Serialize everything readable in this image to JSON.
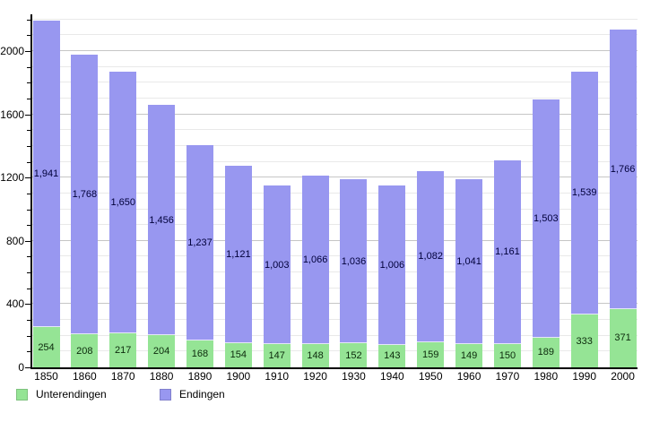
{
  "chart_data": {
    "type": "bar",
    "stacked": true,
    "title": "",
    "xlabel": "",
    "ylabel": "",
    "categories": [
      "1850",
      "1860",
      "1870",
      "1880",
      "1890",
      "1900",
      "1910",
      "1920",
      "1930",
      "1940",
      "1950",
      "1960",
      "1970",
      "1980",
      "1990",
      "2000"
    ],
    "series": [
      {
        "name": "Unterendingen",
        "color": "#95e495",
        "label_color": "#0c2a0c",
        "values": [
          254,
          208,
          217,
          204,
          168,
          154,
          147,
          148,
          152,
          143,
          159,
          149,
          150,
          189,
          333,
          371
        ]
      },
      {
        "name": "Endingen",
        "color": "#9897f0",
        "label_color": "#00003a",
        "values": [
          1941,
          1768,
          1650,
          1456,
          1237,
          1121,
          1003,
          1066,
          1036,
          1006,
          1082,
          1041,
          1161,
          1503,
          1539,
          1766
        ]
      }
    ],
    "ylim": [
      0,
      2232
    ],
    "y_major_ticks": [
      0,
      400,
      800,
      1200,
      1600,
      2000
    ],
    "y_minor_step": 100,
    "grid": "horizontal",
    "legend_position": "bottom-left",
    "legend": {
      "items": [
        {
          "label": "Unterendingen"
        },
        {
          "label": "Endingen"
        }
      ]
    }
  }
}
